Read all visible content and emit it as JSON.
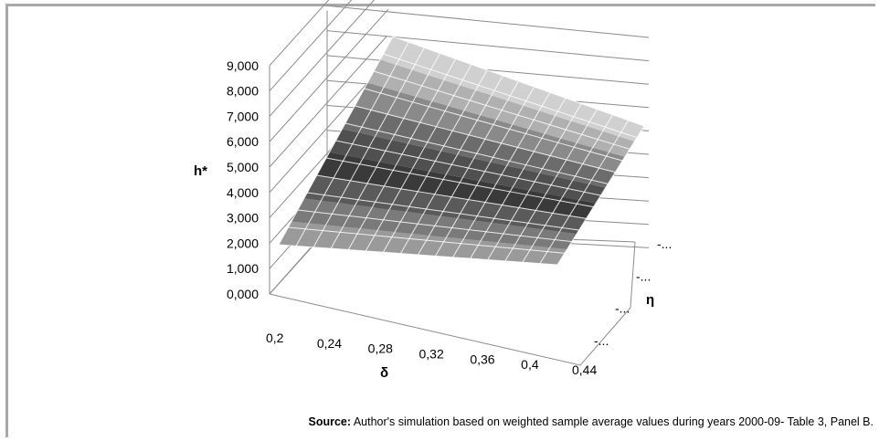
{
  "chart_data": {
    "type": "surface",
    "zlabel": "h*",
    "xlabel": "δ",
    "ylabel": "η",
    "z_ticks": [
      "0,000",
      "1,000",
      "2,000",
      "3,000",
      "4,000",
      "5,000",
      "6,000",
      "7,000",
      "8,000",
      "9,000"
    ],
    "x_ticks": [
      "0,2",
      "0,24",
      "0,28",
      "0,32",
      "0,36",
      "0,4",
      "0,44"
    ],
    "y_ticks": [
      "-...",
      "-...",
      "-...",
      "-..."
    ],
    "zlim": [
      0,
      9
    ],
    "grid": true,
    "color_bands": [
      "#9a9a9a",
      "#7a7a7a",
      "#5a5a5a",
      "#3a3a3a",
      "#505050",
      "#6c6c6c",
      "#8a8a8a",
      "#b0b0b0",
      "#d0d0d0"
    ],
    "grid_lines": {
      "count_along_delta": 16,
      "count_along_eta": 12
    }
  },
  "source": {
    "label": "Source:",
    "text": " Author's simulation based on weighted sample average values during years 2000-09- Table 3, Panel B."
  }
}
